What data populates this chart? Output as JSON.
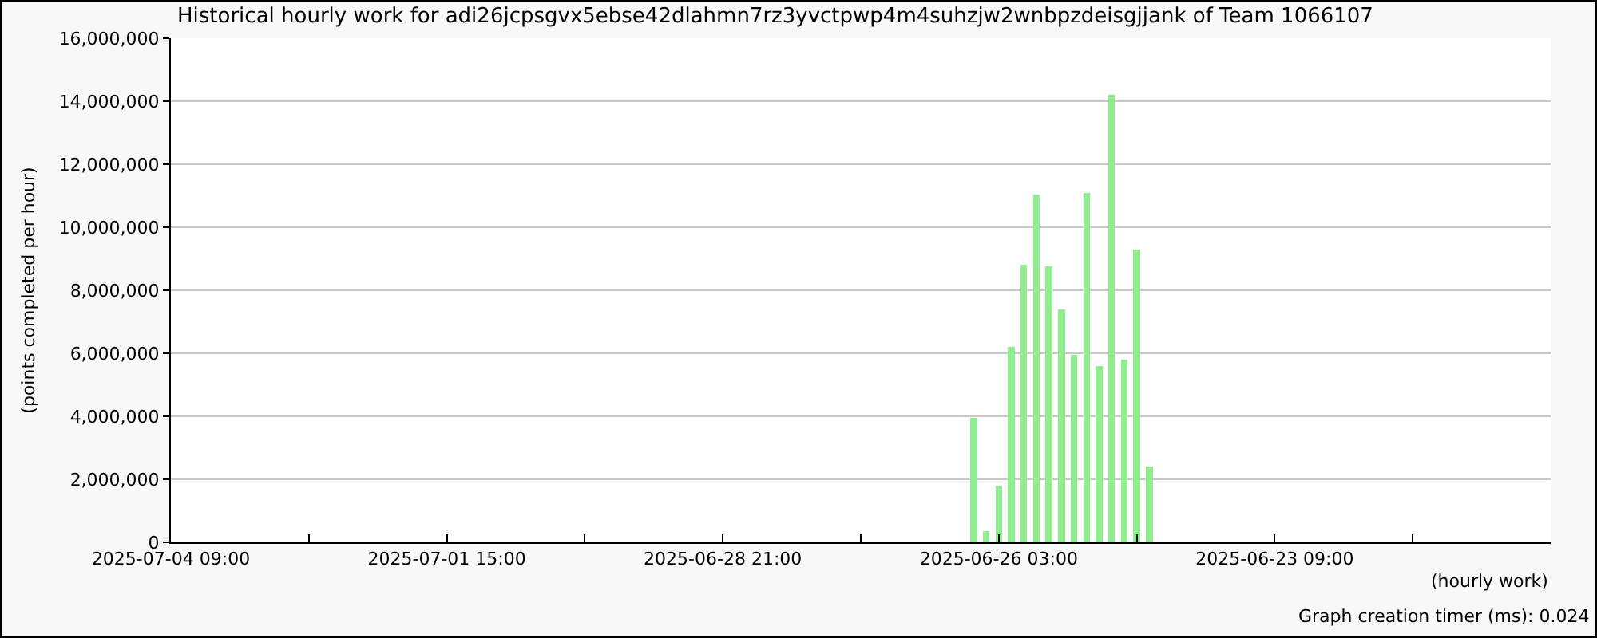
{
  "chart_data": {
    "type": "bar",
    "title": "Historical hourly work for adi26jcpsgvx5ebse42dlahmn7rz3yvctpwp4m4suhzjw2wnbpzdeisgjjank of Team 1066107",
    "xlabel": "(hourly work)",
    "ylabel": "(points completed per hour)",
    "x": [
      "2025-06-26T09:00",
      "2025-06-26T06:00",
      "2025-06-26T03:00",
      "2025-06-26T00:00",
      "2025-06-25T21:00",
      "2025-06-25T18:00",
      "2025-06-25T15:00",
      "2025-06-25T12:00",
      "2025-06-25T09:00",
      "2025-06-25T06:00",
      "2025-06-25T03:00",
      "2025-06-25T00:00",
      "2025-06-24T21:00",
      "2025-06-24T18:00",
      "2025-06-24T15:00"
    ],
    "values": [
      3950000,
      350000,
      1800000,
      6200000,
      8800000,
      11050000,
      8750000,
      7400000,
      5950000,
      11100000,
      5600000,
      14200000,
      5800000,
      9300000,
      2400000
    ],
    "color": "#90ee90",
    "xlim": [
      "2025-07-04T09:00",
      "2025-06-20T15:00"
    ],
    "xticks": [
      {
        "value": "2025-07-04T09:00",
        "label": "2025-07-04 09:00"
      },
      {
        "value": "2025-07-03T00:00",
        "label": null
      },
      {
        "value": "2025-07-01T15:00",
        "label": "2025-07-01 15:00"
      },
      {
        "value": "2025-06-30T06:00",
        "label": null
      },
      {
        "value": "2025-06-28T21:00",
        "label": "2025-06-28 21:00"
      },
      {
        "value": "2025-06-27T12:00",
        "label": null
      },
      {
        "value": "2025-06-26T03:00",
        "label": "2025-06-26 03:00"
      },
      {
        "value": "2025-06-24T18:00",
        "label": null
      },
      {
        "value": "2025-06-23T09:00",
        "label": "2025-06-23 09:00"
      },
      {
        "value": "2025-06-22T00:00",
        "label": null
      },
      {
        "value": "2025-06-20T15:00",
        "label": null
      }
    ],
    "ylim": [
      0,
      16000000
    ],
    "yticks": [
      {
        "value": 0,
        "label": "0"
      },
      {
        "value": 2000000,
        "label": "2,000,000"
      },
      {
        "value": 4000000,
        "label": "4,000,000"
      },
      {
        "value": 6000000,
        "label": "6,000,000"
      },
      {
        "value": 8000000,
        "label": "8,000,000"
      },
      {
        "value": 10000000,
        "label": "10,000,000"
      },
      {
        "value": 12000000,
        "label": "12,000,000"
      },
      {
        "value": 14000000,
        "label": "14,000,000"
      },
      {
        "value": 16000000,
        "label": "16,000,000"
      }
    ],
    "grid": "y",
    "legend": false,
    "annotations": [
      "Graph creation timer (ms): 0.024"
    ]
  }
}
